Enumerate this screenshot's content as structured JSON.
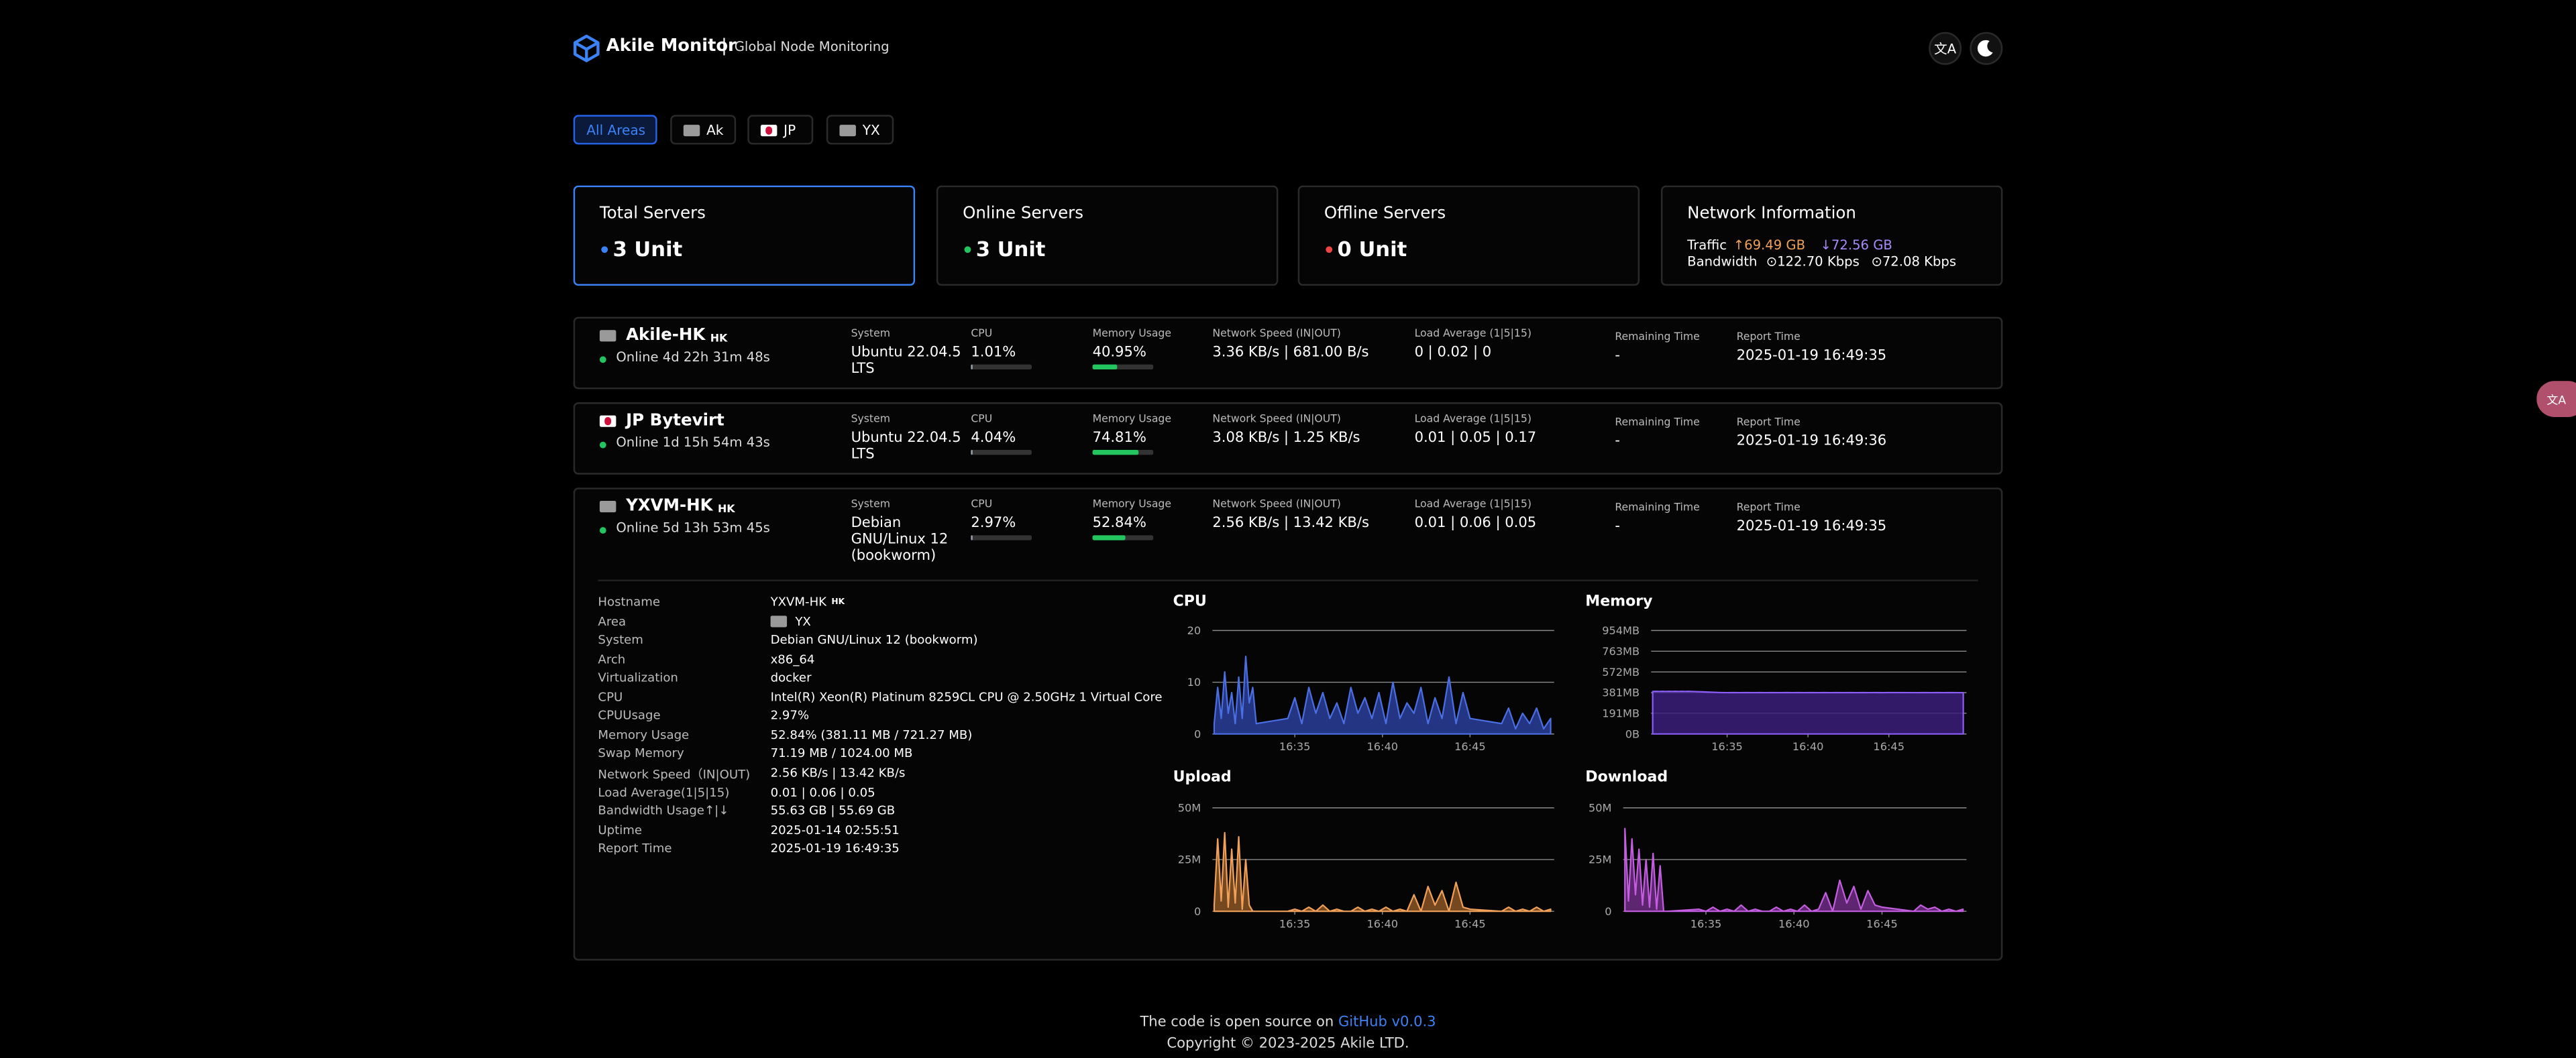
{
  "header": {
    "brand": "Akile Monitor",
    "separator": "|",
    "subtitle": "Global Node Monitoring"
  },
  "filters": [
    "All Areas",
    "Ak",
    "JP",
    "YX"
  ],
  "summary": [
    {
      "label": "Total Servers",
      "value": "3 Unit"
    },
    {
      "label": "Online Servers",
      "value": "3 Unit"
    },
    {
      "label": "Offline Servers",
      "value": "0 Unit"
    }
  ],
  "network_info": {
    "title": "Network Information",
    "traffic_label": "Traffic",
    "traffic_up": "↑69.49 GB",
    "traffic_down": "↓72.56 GB",
    "bandwidth_label": "Bandwidth",
    "bandwidth_up": "⊙122.70 Kbps",
    "bandwidth_down": "⊙72.08 Kbps"
  },
  "columns": [
    "System",
    "CPU",
    "Memory Usage",
    "Network Speed (IN|OUT)",
    "Load Average (1|5|15)",
    "Remaining Time",
    "Report Time"
  ],
  "servers": [
    {
      "name": "Akile-HK",
      "region": "HK",
      "status": "Online 4d 22h 31m 48s",
      "system": "Ubuntu 22.04.5 LTS",
      "cpu": {
        "value": 1.01,
        "label": "1.01%"
      },
      "memory": {
        "value": 40.95,
        "label": "40.95%"
      },
      "network": "3.36 KB/s | 681.00 B/s",
      "load": "0 | 0.02 | 0",
      "remaining": "-",
      "report_time": "2025-01-19 16:49:35"
    },
    {
      "name": "JP Bytevirt",
      "status": "Online 1d 15h 54m 43s",
      "system": "Ubuntu 22.04.5 LTS",
      "cpu": {
        "value": 4.04,
        "label": "4.04%"
      },
      "memory": {
        "value": 74.81,
        "label": "74.81%"
      },
      "network": "3.08 KB/s | 1.25 KB/s",
      "load": "0.01 | 0.05 | 0.17",
      "remaining": "-",
      "report_time": "2025-01-19 16:49:36"
    },
    {
      "name": "YXVM-HK",
      "region": "HK",
      "status": "Online 5d 13h 53m 45s",
      "system": "Debian GNU/Linux 12 (bookworm)",
      "cpu": {
        "value": 2.97,
        "label": "2.97%"
      },
      "memory": {
        "value": 52.84,
        "label": "52.84%"
      },
      "network": "2.56 KB/s | 13.42 KB/s",
      "load": "0.01 | 0.06 | 0.05",
      "remaining": "-",
      "report_time": "2025-01-19 16:49:35"
    }
  ],
  "details": {
    "rows": [
      {
        "label": "Hostname",
        "value": "YXVM-HK",
        "badge": "HK"
      },
      {
        "label": "Area",
        "value": "YX"
      },
      {
        "label": "System",
        "value": "Debian GNU/Linux 12 (bookworm)"
      },
      {
        "label": "Arch",
        "value": "x86_64"
      },
      {
        "label": "Virtualization",
        "value": "docker"
      },
      {
        "label": "CPU",
        "value": "Intel(R) Xeon(R) Platinum 8259CL CPU @ 2.50GHz 1 Virtual Core"
      },
      {
        "label": "CPUUsage",
        "value": "2.97%"
      },
      {
        "label": "Memory Usage",
        "value": "52.84% (381.11 MB / 721.27 MB)"
      },
      {
        "label": "Swap Memory",
        "value": "71.19 MB / 1024.00 MB"
      },
      {
        "label": "Network Speed（IN|OUT)",
        "value": "2.56 KB/s | 13.42 KB/s"
      },
      {
        "label": "Load Average(1|5|15)",
        "value": "0.01 | 0.06 | 0.05"
      },
      {
        "label": "Bandwidth Usage↑|↓",
        "value": "55.63 GB | 55.69 GB"
      },
      {
        "label": "Uptime",
        "value": "2025-01-14 02:55:51"
      },
      {
        "label": "Report Time",
        "value": "2025-01-19 16:49:35"
      }
    ]
  },
  "footer": {
    "text": "The code is open source on",
    "link": "GitHub v0.0.3",
    "copyright": "Copyright © 2023-2025 Akile LTD."
  },
  "chart_data": [
    {
      "type": "area",
      "title": "CPU",
      "color": "#4a6fe3",
      "fill": "#2a3f9a",
      "grid": true,
      "x": [
        30.4,
        30.6,
        30.8,
        31.0,
        31.2,
        31.4,
        31.6,
        31.8,
        32.0,
        32.2,
        32.4,
        32.6,
        32.8,
        34.6,
        35.0,
        35.4,
        35.8,
        36.2,
        36.6,
        37.0,
        37.4,
        37.8,
        38.2,
        38.6,
        39.0,
        39.4,
        39.8,
        40.2,
        40.6,
        41.0,
        41.4,
        41.8,
        42.2,
        42.6,
        43.0,
        43.4,
        43.8,
        44.2,
        44.6,
        45.0,
        46.8,
        47.2,
        47.6,
        48.0,
        48.4,
        48.8,
        49.2,
        49.6
      ],
      "values": [
        2,
        9,
        3,
        12,
        4,
        8,
        2,
        11,
        3,
        15,
        6,
        9,
        2,
        3,
        7,
        2,
        9,
        4,
        8,
        3,
        6,
        2,
        9,
        4,
        7,
        3,
        8,
        2,
        10,
        3,
        6,
        4,
        9,
        2,
        7,
        3,
        11,
        2,
        8,
        3,
        2,
        5,
        1,
        4,
        2,
        5,
        1,
        3
      ],
      "xlim": [
        30.3,
        49.8
      ],
      "xticks": [
        {
          "value": 35,
          "label": "16:35"
        },
        {
          "value": 40,
          "label": "16:40"
        },
        {
          "value": 45,
          "label": "16:45"
        }
      ],
      "ylim": [
        0,
        20
      ],
      "yticks": [
        0,
        10,
        20
      ]
    },
    {
      "type": "area",
      "title": "Memory",
      "color": "#8b5cf6",
      "fill": "#3b1f7a",
      "grid": true,
      "x": [
        30.4,
        30.6,
        30.8,
        31.0,
        31.2,
        31.4,
        31.6,
        31.8,
        32.0,
        32.2,
        32.4,
        32.6,
        32.8,
        34.6,
        35.0,
        35.4,
        35.8,
        36.2,
        36.6,
        37.0,
        37.4,
        37.8,
        38.2,
        38.6,
        39.0,
        39.4,
        39.8,
        40.2,
        40.6,
        41.0,
        41.4,
        41.8,
        42.2,
        42.6,
        43.0,
        43.4,
        43.8,
        44.2,
        44.6,
        45.0,
        46.8,
        47.2,
        47.6,
        48.0,
        48.4,
        48.8,
        49.2,
        49.6
      ],
      "values": [
        392,
        393,
        392,
        393,
        392,
        393,
        392,
        393,
        392,
        393,
        392,
        393,
        392,
        382,
        381,
        382,
        381,
        382,
        381,
        382,
        381,
        382,
        381,
        382,
        381,
        382,
        381,
        382,
        381,
        382,
        381,
        382,
        381,
        382,
        381,
        382,
        381,
        382,
        381,
        382,
        381,
        382,
        381,
        382,
        381,
        382,
        381,
        381
      ],
      "xlim": [
        30.3,
        49.8
      ],
      "xticks": [
        {
          "value": 35,
          "label": "16:35"
        },
        {
          "value": 40,
          "label": "16:40"
        },
        {
          "value": 45,
          "label": "16:45"
        }
      ],
      "ylim": [
        0,
        954
      ],
      "yticks": [
        {
          "value": 0,
          "label": "0B"
        },
        {
          "value": 191,
          "label": "191MB"
        },
        {
          "value": 381,
          "label": "381MB"
        },
        {
          "value": 572,
          "label": "572MB"
        },
        {
          "value": 763,
          "label": "763MB"
        },
        {
          "value": 954,
          "label": "954MB"
        }
      ]
    },
    {
      "type": "area",
      "title": "Upload",
      "color": "#f0a058",
      "fill": "#8a5526",
      "grid": true,
      "x": [
        30.4,
        30.6,
        30.8,
        31.0,
        31.2,
        31.4,
        31.6,
        31.8,
        32.0,
        32.2,
        32.4,
        32.6,
        32.8,
        34.6,
        35.0,
        35.4,
        35.8,
        36.2,
        36.6,
        37.0,
        37.4,
        37.8,
        38.2,
        38.6,
        39.0,
        39.4,
        39.8,
        40.2,
        40.6,
        41.0,
        41.4,
        41.8,
        42.2,
        42.6,
        43.0,
        43.4,
        43.8,
        44.2,
        44.6,
        45.0,
        46.8,
        47.2,
        47.6,
        48.0,
        48.4,
        48.8,
        49.2,
        49.6
      ],
      "values": [
        3,
        35,
        5,
        38,
        2,
        30,
        4,
        36,
        1,
        25,
        3,
        0,
        0,
        0,
        1,
        0,
        2,
        0,
        3,
        0,
        1,
        0,
        0,
        2,
        0,
        1,
        0,
        2,
        0,
        1,
        0,
        8,
        0,
        12,
        3,
        10,
        0,
        14,
        2,
        1,
        0,
        2,
        0,
        1,
        0,
        2,
        0,
        1
      ],
      "xlim": [
        30.3,
        49.8
      ],
      "xticks": [
        {
          "value": 35,
          "label": "16:35"
        },
        {
          "value": 40,
          "label": "16:40"
        },
        {
          "value": 45,
          "label": "16:45"
        }
      ],
      "ylim": [
        0,
        50
      ],
      "yticks": [
        0,
        {
          "value": 25,
          "label": "25M"
        },
        {
          "value": 50,
          "label": "50M"
        }
      ]
    },
    {
      "type": "area",
      "title": "Download",
      "color": "#c45de0",
      "fill": "#6e2c85",
      "grid": true,
      "x": [
        30.4,
        30.6,
        30.8,
        31.0,
        31.2,
        31.4,
        31.6,
        31.8,
        32.0,
        32.2,
        32.4,
        32.6,
        32.8,
        34.6,
        35.0,
        35.4,
        35.8,
        36.2,
        36.6,
        37.0,
        37.4,
        37.8,
        38.2,
        38.6,
        39.0,
        39.4,
        39.8,
        40.2,
        40.6,
        41.0,
        41.4,
        41.8,
        42.2,
        42.6,
        43.0,
        43.4,
        43.8,
        44.2,
        44.6,
        45.0,
        46.8,
        47.2,
        47.6,
        48.0,
        48.4,
        48.8,
        49.2,
        49.6
      ],
      "values": [
        40,
        5,
        35,
        8,
        30,
        3,
        25,
        2,
        28,
        1,
        22,
        0,
        0,
        1,
        0,
        2,
        0,
        1,
        0,
        3,
        0,
        1,
        0,
        0,
        2,
        0,
        1,
        0,
        3,
        0,
        1,
        9,
        0,
        15,
        4,
        12,
        1,
        10,
        3,
        2,
        0,
        3,
        1,
        2,
        0,
        1,
        0,
        1
      ],
      "xlim": [
        30.3,
        49.8
      ],
      "xticks": [
        {
          "value": 35,
          "label": "16:35"
        },
        {
          "value": 40,
          "label": "16:40"
        },
        {
          "value": 45,
          "label": "16:45"
        }
      ],
      "ylim": [
        0,
        50
      ],
      "yticks": [
        0,
        {
          "value": 25,
          "label": "25M"
        },
        {
          "value": 50,
          "label": "50M"
        }
      ]
    }
  ]
}
